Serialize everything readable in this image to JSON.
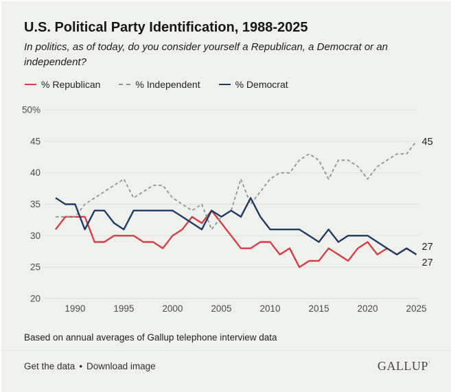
{
  "header": {
    "title": "U.S. Political Party Identification, 1988-2025",
    "subtitle": "In politics, as of today, do you consider yourself a Republican, a Democrat or an independent?"
  },
  "legend": [
    {
      "label": "% Republican",
      "color": "#dc3a41",
      "style": "solid"
    },
    {
      "label": "% Independent",
      "color": "#85988f",
      "style": "dashed"
    },
    {
      "label": "% Democrat",
      "color": "#1b3a68",
      "style": "solid"
    }
  ],
  "chart_data": {
    "type": "line",
    "title": "U.S. Political Party Identification, 1988-2025",
    "x": [
      1988,
      1989,
      1990,
      1991,
      1992,
      1993,
      1994,
      1995,
      1996,
      1997,
      1998,
      1999,
      2000,
      2001,
      2002,
      2003,
      2004,
      2005,
      2006,
      2007,
      2008,
      2009,
      2010,
      2011,
      2012,
      2013,
      2014,
      2015,
      2016,
      2017,
      2018,
      2019,
      2020,
      2021,
      2022,
      2023,
      2024,
      2025
    ],
    "series": [
      {
        "name": "% Republican",
        "color": "#dc3a41",
        "style": "solid",
        "values": [
          31,
          33,
          33,
          33,
          29,
          29,
          30,
          30,
          30,
          29,
          29,
          28,
          30,
          31,
          33,
          32,
          34,
          32,
          30,
          28,
          28,
          29,
          29,
          27,
          28,
          25,
          26,
          26,
          28,
          27,
          26,
          28,
          29,
          27,
          28,
          27,
          28,
          27
        ]
      },
      {
        "name": "% Independent",
        "color": "#85988f",
        "style": "dashed",
        "values": [
          33,
          33,
          33,
          35,
          36,
          37,
          38,
          39,
          36,
          37,
          38,
          38,
          36,
          35,
          34,
          35,
          31,
          33,
          34,
          39,
          35,
          37,
          39,
          40,
          40,
          42,
          43,
          42,
          39,
          42,
          42,
          41,
          39,
          41,
          42,
          43,
          43,
          45
        ]
      },
      {
        "name": "% Democrat",
        "color": "#1b3a68",
        "style": "solid",
        "values": [
          36,
          35,
          35,
          31,
          34,
          34,
          32,
          31,
          34,
          34,
          34,
          34,
          34,
          33,
          32,
          31,
          34,
          33,
          34,
          33,
          36,
          33,
          31,
          31,
          31,
          31,
          30,
          29,
          31,
          29,
          30,
          30,
          30,
          29,
          28,
          27,
          28,
          27
        ]
      }
    ],
    "ylim": [
      20,
      50
    ],
    "yticks": [
      50,
      45,
      40,
      35,
      30,
      25,
      20
    ],
    "ytick_labels": [
      "50%",
      "45",
      "40",
      "35",
      "30",
      "25",
      "20"
    ],
    "xticks": [
      1990,
      1995,
      2000,
      2005,
      2010,
      2015,
      2020,
      2025
    ],
    "end_labels": [
      {
        "text": "45",
        "series": "% Independent",
        "value": 45
      },
      {
        "text": "27",
        "series": "% Democrat",
        "value": 27
      },
      {
        "text": "27",
        "series": "% Republican",
        "value": 27
      }
    ],
    "grid": "horizontal",
    "legend_position": "top"
  },
  "footer": {
    "note": "Based on annual averages of Gallup telephone interview data",
    "link1": "Get the data",
    "separator": "•",
    "link2": "Download image",
    "logo": "GALLUP",
    "logo_mark": "’"
  },
  "colors": {
    "background": "#eff2ec",
    "gridline": "#dbdfd7",
    "axis_text": "#4a4a4a",
    "title_text": "#161616",
    "republican": "#dc3a41",
    "independent": "#85988f",
    "democrat": "#1b3a68"
  }
}
